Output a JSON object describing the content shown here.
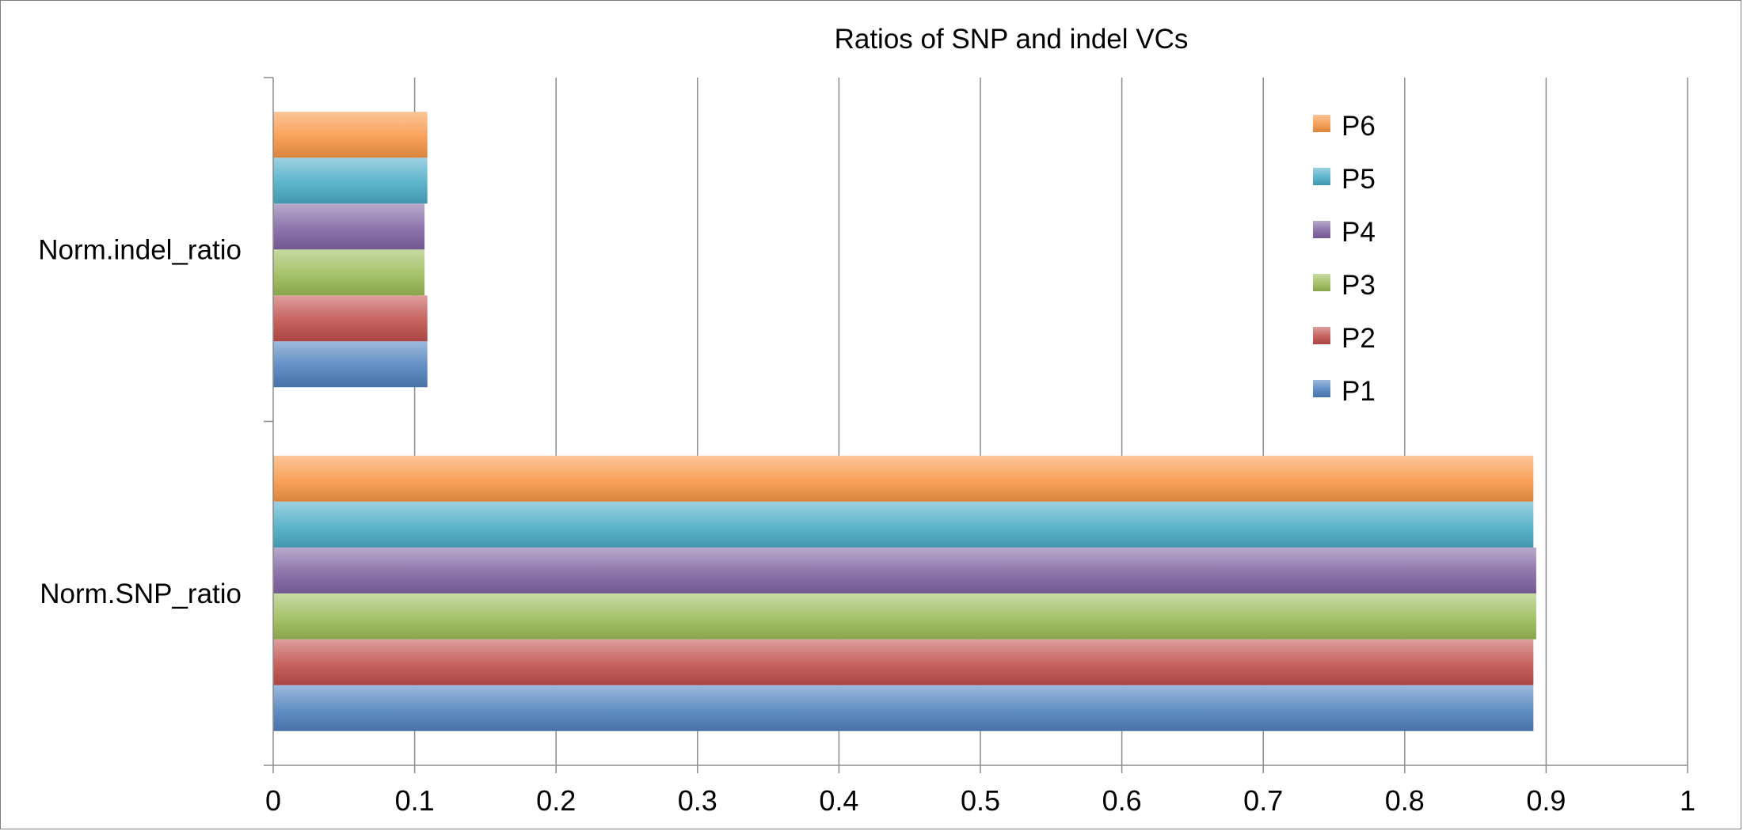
{
  "chart_data": {
    "type": "bar",
    "orientation": "horizontal",
    "title": "Ratios of SNP and indel VCs",
    "categories": [
      "Norm.SNP_ratio",
      "Norm.indel_ratio"
    ],
    "series": [
      {
        "name": "P1",
        "values": [
          0.891,
          0.109
        ],
        "color": "#4f81bd"
      },
      {
        "name": "P2",
        "values": [
          0.891,
          0.109
        ],
        "color": "#c0504d"
      },
      {
        "name": "P3",
        "values": [
          0.893,
          0.107
        ],
        "color": "#9bbb59"
      },
      {
        "name": "P4",
        "values": [
          0.893,
          0.107
        ],
        "color": "#8064a2"
      },
      {
        "name": "P5",
        "values": [
          0.891,
          0.109
        ],
        "color": "#4bacc6"
      },
      {
        "name": "P6",
        "values": [
          0.891,
          0.109
        ],
        "color": "#f79646"
      }
    ],
    "xlim": [
      0,
      1
    ],
    "x_ticks": [
      "0",
      "0.1",
      "0.2",
      "0.3",
      "0.4",
      "0.5",
      "0.6",
      "0.7",
      "0.8",
      "0.9",
      "1"
    ],
    "grid": "vertical",
    "legend_position": "top-right",
    "xlabel": "",
    "ylabel": ""
  }
}
